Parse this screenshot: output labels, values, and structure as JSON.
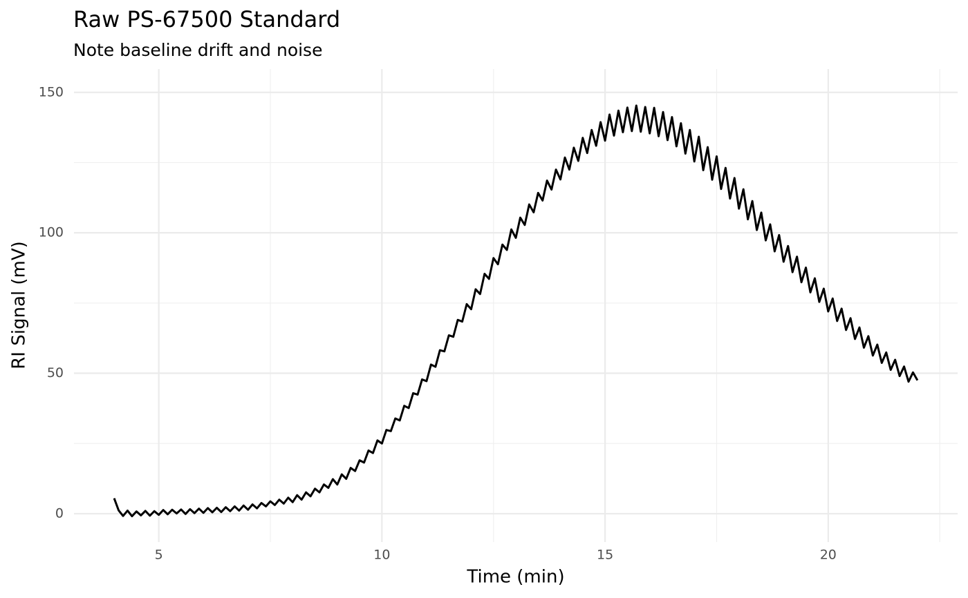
{
  "chart_data": {
    "type": "line",
    "title": "Raw PS-67500 Standard",
    "subtitle": "Note baseline drift and noise",
    "x_label": "Time (min)",
    "y_label": "RI Signal (mV)",
    "x": [
      4.0,
      4.1,
      4.2,
      4.3,
      4.4,
      4.5,
      4.6,
      4.7,
      4.8,
      4.9,
      5.0,
      5.1,
      5.2,
      5.3,
      5.4,
      5.5,
      5.6,
      5.7,
      5.8,
      5.9,
      6.0,
      6.1,
      6.2,
      6.3,
      6.4,
      6.5,
      6.6,
      6.7,
      6.8,
      6.9,
      7.0,
      7.1,
      7.2,
      7.3,
      7.4,
      7.5,
      7.6,
      7.7,
      7.8,
      7.9,
      8.0,
      8.1,
      8.2,
      8.3,
      8.4,
      8.5,
      8.6,
      8.7,
      8.8,
      8.9,
      9.0,
      9.1,
      9.2,
      9.3,
      9.4,
      9.5,
      9.6,
      9.7,
      9.8,
      9.9,
      10.0,
      10.1,
      10.2,
      10.3,
      10.4,
      10.5,
      10.6,
      10.7,
      10.8,
      10.9,
      11.0,
      11.1,
      11.2,
      11.3,
      11.4,
      11.5,
      11.6,
      11.7,
      11.8,
      11.9,
      12.0,
      12.1,
      12.2,
      12.3,
      12.4,
      12.5,
      12.6,
      12.7,
      12.8,
      12.9,
      13.0,
      13.1,
      13.2,
      13.3,
      13.4,
      13.5,
      13.6,
      13.7,
      13.8,
      13.9,
      14.0,
      14.1,
      14.2,
      14.3,
      14.4,
      14.5,
      14.6,
      14.7,
      14.8,
      14.9,
      15.0,
      15.1,
      15.2,
      15.3,
      15.4,
      15.5,
      15.6,
      15.7,
      15.8,
      15.9,
      16.0,
      16.1,
      16.2,
      16.3,
      16.4,
      16.5,
      16.6,
      16.7,
      16.8,
      16.9,
      17.0,
      17.1,
      17.2,
      17.3,
      17.4,
      17.5,
      17.6,
      17.7,
      17.8,
      17.9,
      18.0,
      18.1,
      18.2,
      18.3,
      18.4,
      18.5,
      18.6,
      18.7,
      18.8,
      18.9,
      19.0,
      19.1,
      19.2,
      19.3,
      19.4,
      19.5,
      19.6,
      19.7,
      19.8,
      19.9,
      20.0,
      20.1,
      20.2,
      20.3,
      20.4,
      20.5,
      20.6,
      20.7,
      20.8,
      20.9,
      21.0,
      21.1,
      21.2,
      21.3,
      21.4,
      21.5,
      21.6,
      21.7,
      21.8,
      21.9,
      22.0
    ],
    "series": [
      {
        "name": "RI Signal",
        "color": "#000000",
        "values": [
          5.5,
          1.2,
          -0.8,
          1.1,
          -0.9,
          0.8,
          -0.6,
          1.0,
          -0.7,
          0.9,
          -0.4,
          1.3,
          -0.2,
          1.4,
          0.1,
          1.5,
          -0.1,
          1.6,
          0.2,
          1.8,
          0.3,
          2.0,
          0.5,
          2.1,
          0.6,
          2.3,
          0.9,
          2.6,
          1.1,
          2.9,
          1.4,
          3.3,
          1.9,
          3.8,
          2.6,
          4.4,
          3.1,
          5.0,
          3.6,
          5.7,
          4.1,
          6.6,
          5.0,
          7.6,
          6.2,
          8.9,
          7.6,
          10.4,
          9.2,
          12.3,
          10.4,
          14.0,
          12.4,
          16.3,
          15.2,
          19.0,
          18.2,
          22.5,
          21.6,
          26.1,
          25.0,
          29.8,
          29.4,
          33.9,
          33.2,
          38.4,
          37.6,
          42.9,
          42.4,
          47.8,
          47.2,
          53.1,
          52.3,
          58.2,
          57.8,
          63.5,
          63.0,
          69.0,
          68.4,
          74.6,
          72.8,
          79.9,
          78.2,
          85.4,
          83.6,
          91.0,
          88.8,
          95.8,
          93.9,
          101.2,
          98.2,
          105.4,
          102.8,
          110.1,
          107.3,
          114.2,
          111.5,
          118.6,
          115.4,
          122.5,
          119.0,
          126.8,
          122.5,
          130.3,
          125.6,
          133.8,
          128.4,
          136.6,
          131.0,
          139.4,
          132.8,
          142.1,
          134.6,
          143.5,
          135.8,
          144.6,
          136.2,
          145.3,
          136.0,
          144.8,
          135.4,
          144.5,
          134.4,
          143.0,
          133.0,
          141.2,
          130.8,
          139.0,
          128.2,
          136.6,
          125.4,
          134.2,
          122.3,
          130.5,
          118.9,
          127.2,
          115.6,
          123.1,
          112.2,
          119.5,
          108.6,
          115.5,
          104.8,
          111.3,
          101.0,
          107.2,
          97.3,
          103.0,
          93.4,
          99.2,
          89.7,
          95.3,
          86.0,
          91.5,
          82.4,
          87.6,
          78.8,
          83.8,
          75.4,
          80.1,
          72.0,
          76.6,
          68.6,
          73.0,
          65.4,
          69.6,
          62.2,
          66.3,
          59.1,
          63.2,
          56.3,
          60.2,
          53.7,
          57.4,
          51.2,
          54.8,
          49.0,
          52.4,
          47.0,
          50.3,
          47.5
        ]
      }
    ],
    "xlim": [
      3.1,
      22.9
    ],
    "ylim": [
      -10.1,
      158.3
    ],
    "xticks": [
      5,
      10,
      15,
      20
    ],
    "yticks": [
      0,
      50,
      100,
      150
    ],
    "x_minor_ticks": [
      7.5,
      12.5,
      17.5,
      22.5
    ],
    "y_minor_ticks": [
      25,
      75,
      125
    ],
    "grid": true
  }
}
